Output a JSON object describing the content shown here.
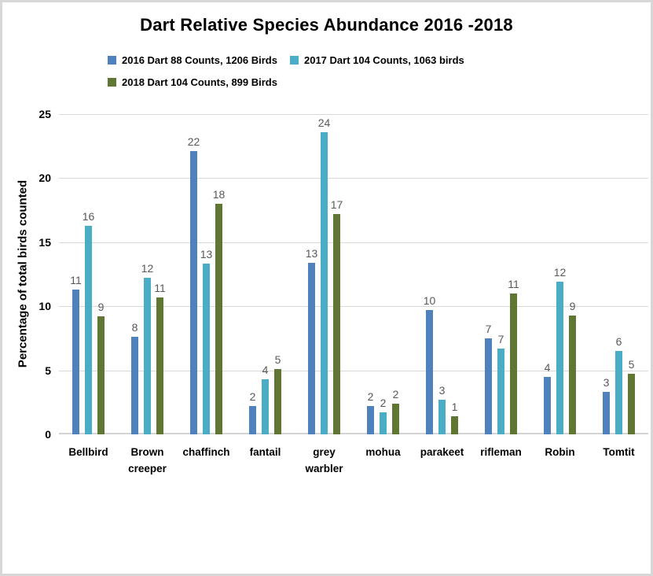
{
  "chart_data": {
    "type": "bar",
    "title": "Dart Relative Species Abundance 2016 -2018",
    "ylabel": "Percentage of total birds counted",
    "xlabel": "",
    "ylim": [
      0,
      25
    ],
    "yticks": [
      0,
      5,
      10,
      15,
      20,
      25
    ],
    "grid": "horizontal",
    "legend_position": "top-left",
    "categories": [
      "Bellbird",
      "Brown creeper",
      "chaffinch",
      "fantail",
      "grey warbler",
      "mohua",
      "parakeet",
      "rifleman",
      "Robin",
      "Tomtit"
    ],
    "series": [
      {
        "name": "2016 Dart 88 Counts, 1206 Birds",
        "color": "#4F81BD",
        "values": [
          11.3,
          7.6,
          22.1,
          2.2,
          13.4,
          2.2,
          9.7,
          7.5,
          4.5,
          3.3
        ],
        "labels": [
          "11",
          "8",
          "22",
          "2",
          "13",
          "2",
          "10",
          "7",
          "4",
          "3"
        ]
      },
      {
        "name": "2017 Dart 104 Counts, 1063 birds",
        "color": "#4BACC6",
        "values": [
          16.3,
          12.2,
          13.3,
          4.3,
          23.6,
          1.7,
          2.7,
          6.7,
          11.9,
          6.5
        ],
        "labels": [
          "16",
          "12",
          "13",
          "4",
          "24",
          "2",
          "3",
          "7",
          "12",
          "6"
        ]
      },
      {
        "name": "2018 Dart 104 Counts, 899 Birds",
        "color": "#5F7732",
        "values": [
          9.2,
          10.7,
          18.0,
          5.1,
          17.2,
          2.4,
          1.4,
          11.0,
          9.3,
          4.7
        ],
        "labels": [
          "9",
          "11",
          "18",
          "5",
          "17",
          "2",
          "1",
          "11",
          "9",
          "5"
        ]
      }
    ],
    "colors": {
      "gridline": "#d9d9d9",
      "data_label": "#595959",
      "frame_border": "#d7d7d7"
    }
  }
}
